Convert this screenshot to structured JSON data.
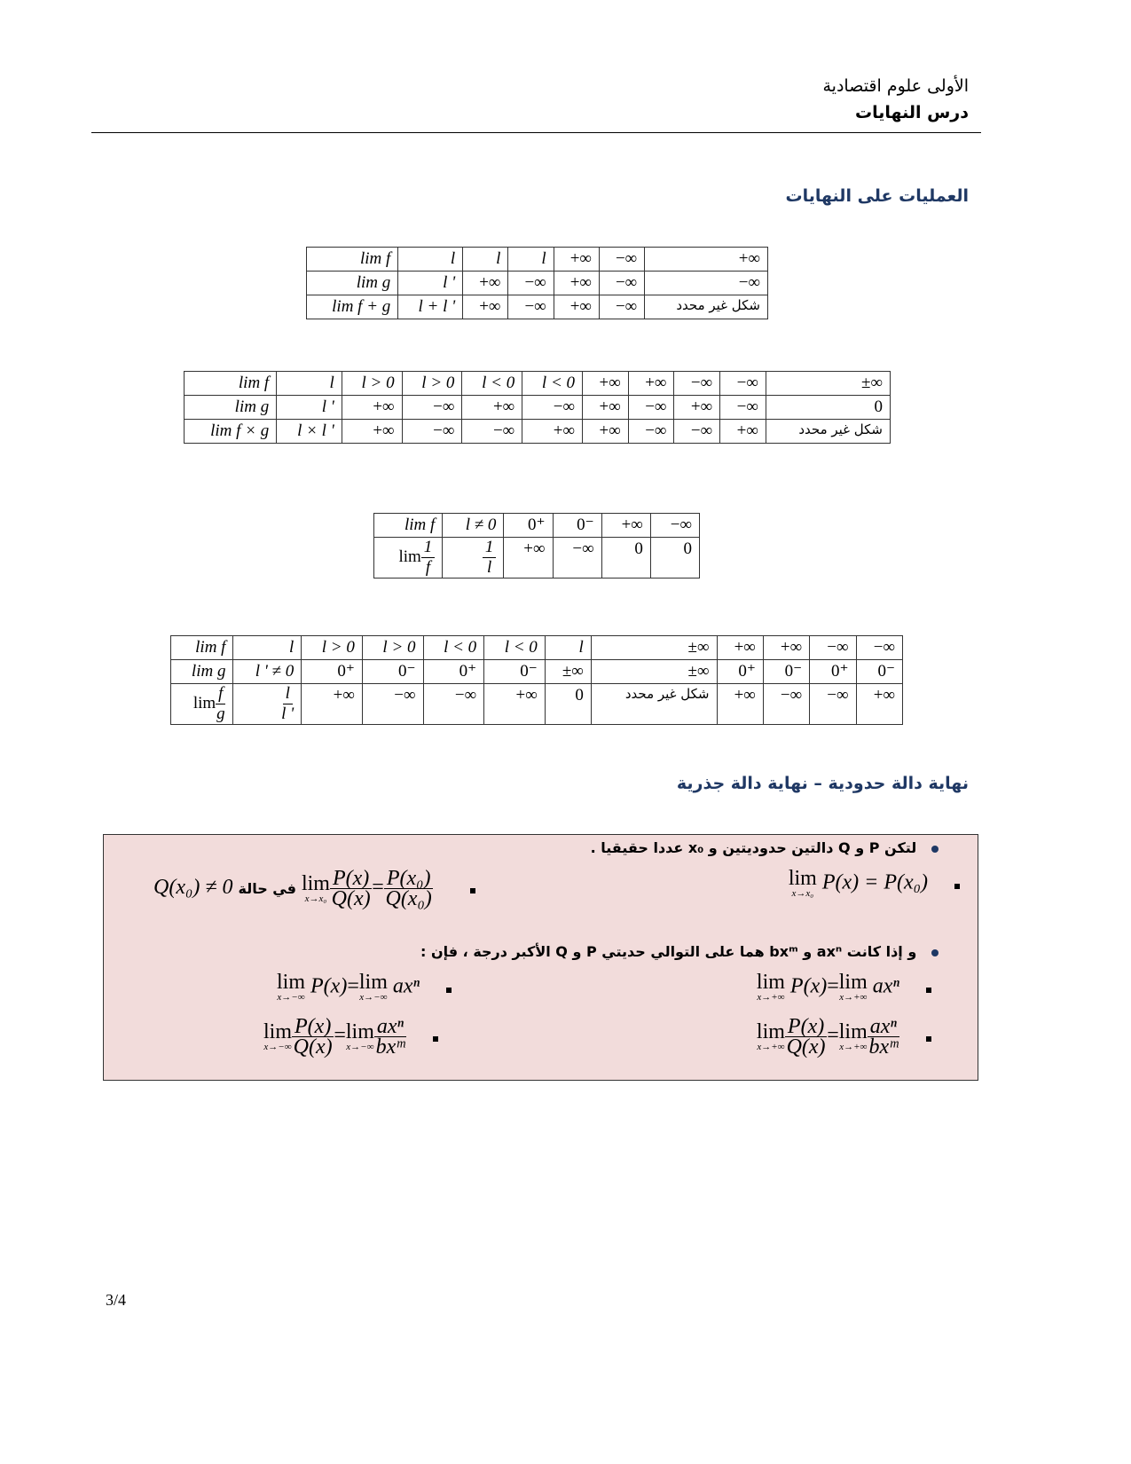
{
  "header": {
    "line1": "الأولى علوم اقتصادية",
    "line2": "درس النهايات"
  },
  "sections": {
    "operations": "العمليات على النهايات",
    "polynomial": "نهاية دالة حدودية – نهاية دالة جذرية"
  },
  "tables": [
    {
      "rows": [
        [
          "lim f",
          "l",
          "l",
          "l",
          "+∞",
          "−∞",
          "+∞"
        ],
        [
          "lim g",
          "l '",
          "+∞",
          "−∞",
          "+∞",
          "−∞",
          "−∞"
        ],
        [
          "lim f + g",
          "l + l '",
          "+∞",
          "−∞",
          "+∞",
          "−∞",
          {
            "ar": "شكل غير محدد"
          }
        ]
      ]
    },
    {
      "rows": [
        [
          "lim f",
          "l",
          "l > 0",
          "l > 0",
          "l < 0",
          "l < 0",
          "+∞",
          "+∞",
          "−∞",
          "−∞",
          "±∞"
        ],
        [
          "lim g",
          "l '",
          "+∞",
          "−∞",
          "+∞",
          "−∞",
          "+∞",
          "−∞",
          "+∞",
          "−∞",
          "0"
        ],
        [
          "lim f × g",
          "l × l '",
          "+∞",
          "−∞",
          "−∞",
          "+∞",
          "+∞",
          "−∞",
          "−∞",
          "+∞",
          {
            "ar": "شكل غير محدد"
          }
        ]
      ]
    },
    {
      "rows": [
        [
          "lim f",
          "l ≠ 0",
          "0⁺",
          "0⁻",
          "+∞",
          "−∞"
        ],
        [
          {
            "pre": "lim",
            "num": "1",
            "den": "f"
          },
          {
            "num": "1",
            "den": "l"
          },
          "+∞",
          "−∞",
          "0",
          "0"
        ]
      ]
    },
    {
      "rows": [
        [
          "lim f",
          "l",
          "l > 0",
          "l > 0",
          "l < 0",
          "l < 0",
          "l",
          "±∞",
          "+∞",
          "+∞",
          "−∞",
          "−∞"
        ],
        [
          "lim g",
          "l ' ≠ 0",
          "0⁺",
          "0⁻",
          "0⁺",
          "0⁻",
          "±∞",
          "±∞",
          "0⁺",
          "0⁻",
          "0⁺",
          "0⁻"
        ],
        [
          {
            "pre": "lim",
            "num": "f",
            "den": "g"
          },
          {
            "num": "l",
            "den": "l '"
          },
          "+∞",
          "−∞",
          "−∞",
          "+∞",
          "0",
          {
            "ar": "شكل غير محدد"
          },
          "+∞",
          "−∞",
          "−∞",
          "+∞"
        ]
      ]
    }
  ],
  "box": {
    "intro": "لتكن P و Q دالتين حدوديتين و x₀ عددا حقيقيا .",
    "f1_lim_sub": "x→x₀",
    "f1": "P(x) = P(x₀)",
    "f2_lim_sub": "x→x₀",
    "f2_num": "P(x)",
    "f2_den": "Q(x)",
    "f2_num2": "P(x₀)",
    "f2_den2": "Q(x₀)",
    "f2_cond_ar": "في حالة",
    "f2_cond": "Q(x₀) ≠ 0",
    "intro2": "و إذا كانت axⁿ و bxᵐ هما على التوالي حديتي P و Q الأكبر درجة ، فإن :",
    "sub_pinf": "x→+∞",
    "sub_minf": "x→−∞",
    "px": "P(x)",
    "eq": "=",
    "axn": "axⁿ",
    "qx": "Q(x)",
    "bxm": "bxᵐ",
    "lim": "lim"
  },
  "page_number": "3/4"
}
